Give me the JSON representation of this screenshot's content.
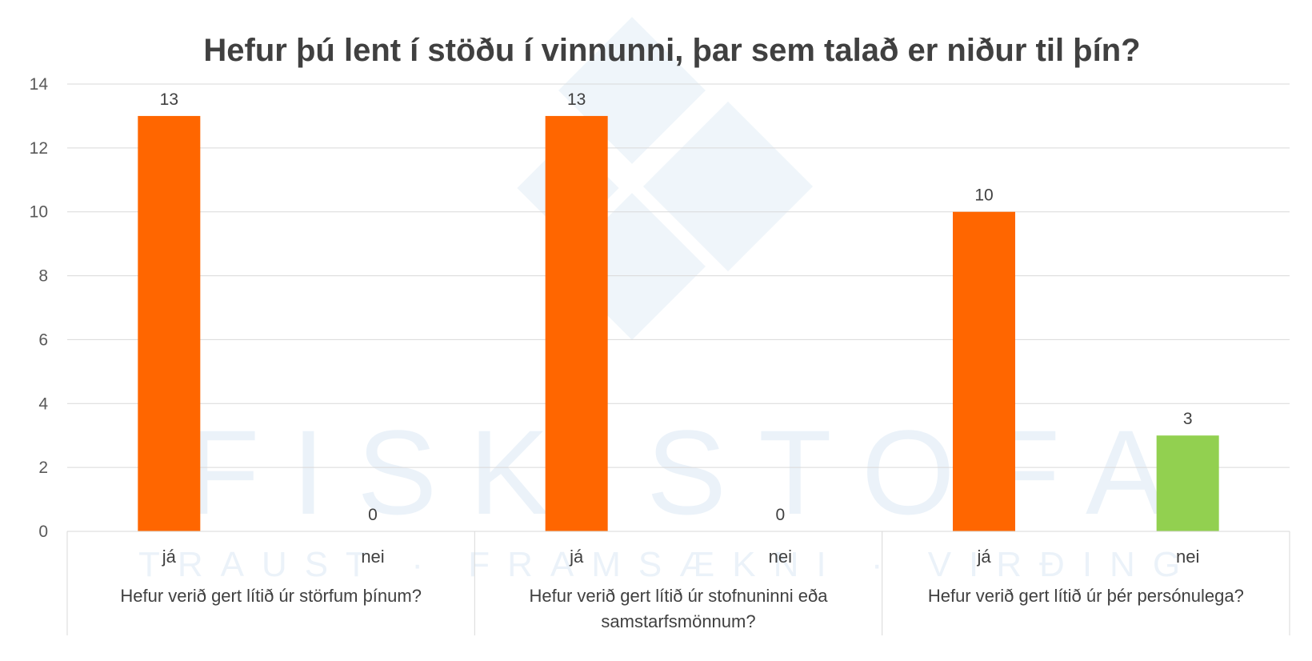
{
  "watermark": {
    "logo_text": "FISKISTOFA",
    "tagline": "TRAUST · FRAMSÆKNI · VIRÐING",
    "color": "#dce9f5"
  },
  "chart_data": {
    "type": "bar",
    "title": "Hefur þú lent í stöðu í vinnunni, þar sem talað er niður til þín?",
    "xlabel": "",
    "ylabel": "",
    "ylim": [
      0,
      14
    ],
    "yticks": [
      0,
      2,
      4,
      6,
      8,
      10,
      12,
      14
    ],
    "grid": true,
    "legend": "none",
    "groups": [
      {
        "label": "Hefur verið gert lítið úr störfum þínum?",
        "bars": [
          {
            "category": "já",
            "value": 13,
            "color": "#ff6600"
          },
          {
            "category": "nei",
            "value": 0,
            "color": "#92d050"
          }
        ]
      },
      {
        "label": "Hefur verið gert lítið úr stofnuninni eða samstarfsmönnum?",
        "bars": [
          {
            "category": "já",
            "value": 13,
            "color": "#ff6600"
          },
          {
            "category": "nei",
            "value": 0,
            "color": "#92d050"
          }
        ]
      },
      {
        "label": "Hefur verið gert lítið úr þér persónulega?",
        "bars": [
          {
            "category": "já",
            "value": 10,
            "color": "#ff6600"
          },
          {
            "category": "nei",
            "value": 3,
            "color": "#92d050"
          }
        ]
      }
    ]
  }
}
